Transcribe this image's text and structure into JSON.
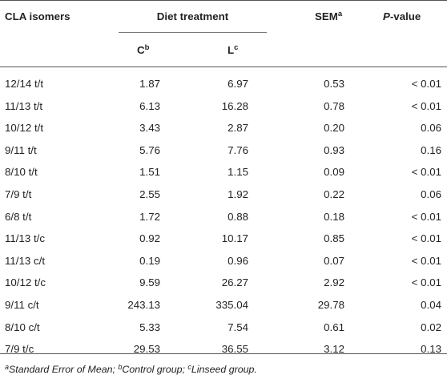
{
  "headers": {
    "isomers": "CLA isomers",
    "diet": "Diet treatment",
    "c_label": "C",
    "c_sup": "b",
    "l_label": "L",
    "l_sup": "c",
    "sem_label": "SEM",
    "sem_sup": "a",
    "p_label_italic": "P",
    "p_label_rest": "-value"
  },
  "rows": [
    {
      "isomer": "12/14 t/t",
      "c": "1.87",
      "l": "6.97",
      "sem": "0.53",
      "p": "< 0.01"
    },
    {
      "isomer": "11/13 t/t",
      "c": "6.13",
      "l": "16.28",
      "sem": "0.78",
      "p": "< 0.01"
    },
    {
      "isomer": "10/12 t/t",
      "c": "3.43",
      "l": "2.87",
      "sem": "0.20",
      "p": "0.06"
    },
    {
      "isomer": "9/11 t/t",
      "c": "5.76",
      "l": "7.76",
      "sem": "0.93",
      "p": "0.16"
    },
    {
      "isomer": "8/10 t/t",
      "c": "1.51",
      "l": "1.15",
      "sem": "0.09",
      "p": "< 0.01"
    },
    {
      "isomer": "7/9 t/t",
      "c": "2.55",
      "l": "1.92",
      "sem": "0.22",
      "p": "0.06"
    },
    {
      "isomer": "6/8 t/t",
      "c": "1.72",
      "l": "0.88",
      "sem": "0.18",
      "p": "< 0.01"
    },
    {
      "isomer": "11/13 t/c",
      "c": "0.92",
      "l": "10.17",
      "sem": "0.85",
      "p": "< 0.01"
    },
    {
      "isomer": "11/13 c/t",
      "c": "0.19",
      "l": "0.96",
      "sem": "0.07",
      "p": "< 0.01"
    },
    {
      "isomer": "10/12 t/c",
      "c": "9.59",
      "l": "26.27",
      "sem": "2.92",
      "p": "< 0.01"
    },
    {
      "isomer": "9/11 c/t",
      "c": "243.13",
      "l": "335.04",
      "sem": "29.78",
      "p": "0.04"
    },
    {
      "isomer": "8/10 c/t",
      "c": "5.33",
      "l": "7.54",
      "sem": "0.61",
      "p": "0.02"
    },
    {
      "isomer": "7/9 t/c",
      "c": "29.53",
      "l": "36.55",
      "sem": "3.12",
      "p": "0.13"
    }
  ],
  "footnote": {
    "a_sup": "a",
    "a_text": "Standard Error of Mean; ",
    "b_sup": "b",
    "b_text": "Control group; ",
    "c_sup": "c",
    "c_text": "Linseed group."
  }
}
